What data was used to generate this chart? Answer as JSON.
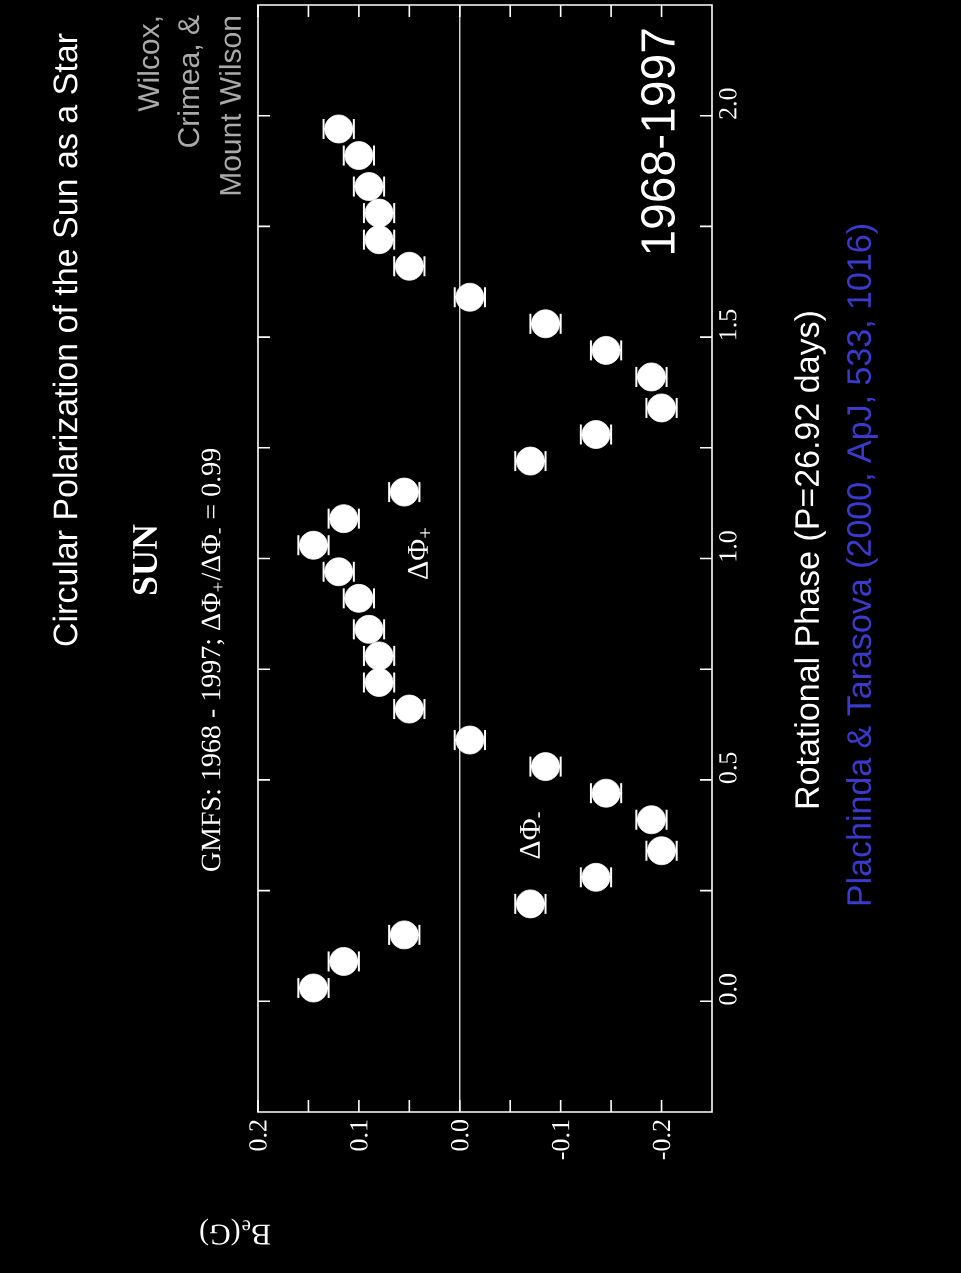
{
  "chart_data": {
    "type": "scatter",
    "title": "Circular Polarization of the Sun as a Star",
    "xlabel": "B$_{e}$(G)",
    "ylabel": "Rotational Phase (P=26.92 days)",
    "x": [
      0.145,
      0.115,
      0.055,
      -0.07,
      -0.135,
      -0.2,
      -0.19,
      -0.145,
      -0.085,
      -0.01,
      0.05,
      0.08,
      0.08,
      0.09,
      0.1,
      0.12,
      0.145,
      0.115,
      0.055,
      -0.07,
      -0.135,
      -0.2,
      -0.19,
      -0.145,
      -0.085,
      -0.01,
      0.05,
      0.08,
      0.08,
      0.09,
      0.1,
      0.12
    ],
    "values": [
      0.03,
      0.09,
      0.15,
      0.22,
      0.28,
      0.34,
      0.41,
      0.47,
      0.53,
      0.59,
      0.66,
      0.72,
      0.78,
      0.84,
      0.91,
      0.97,
      1.03,
      1.09,
      1.15,
      1.22,
      1.28,
      1.34,
      1.41,
      1.47,
      1.53,
      1.59,
      1.66,
      1.72,
      1.78,
      1.84,
      1.91,
      1.97
    ],
    "xerrors": [
      0.015,
      0.015,
      0.015,
      0.015,
      0.015,
      0.015,
      0.015,
      0.015,
      0.015,
      0.015,
      0.015,
      0.015,
      0.015,
      0.015,
      0.015,
      0.015,
      0.015,
      0.015,
      0.015,
      0.015,
      0.015,
      0.015,
      0.015,
      0.015,
      0.015,
      0.015,
      0.015,
      0.015,
      0.015,
      0.015,
      0.015,
      0.015
    ],
    "color": "#ffffff",
    "marker": "circle",
    "xlim": [
      0.2,
      -0.25
    ],
    "xticks": [
      {
        "value": 0.2,
        "label": "0.2"
      },
      {
        "value": 0.15,
        "label": null
      },
      {
        "value": 0.1,
        "label": "0.1"
      },
      {
        "value": 0.05,
        "label": null
      },
      {
        "value": 0,
        "label": "0.0"
      },
      {
        "value": -0.05,
        "label": null
      },
      {
        "value": -0.1,
        "label": "-0.1"
      },
      {
        "value": -0.15,
        "label": null
      },
      {
        "value": -0.2,
        "label": "-0.2"
      }
    ],
    "ylim": [
      -0.25,
      2.25
    ],
    "yticks": [
      {
        "value": 0,
        "label": "0.0"
      },
      {
        "value": 0.25,
        "label": null
      },
      {
        "value": 0.5,
        "label": "0.5"
      },
      {
        "value": 0.75,
        "label": null
      },
      {
        "value": 1,
        "label": "1.0"
      },
      {
        "value": 1.25,
        "label": null
      },
      {
        "value": 1.5,
        "label": "1.5"
      },
      {
        "value": 1.75,
        "label": null
      },
      {
        "value": 2,
        "label": "2.0"
      }
    ],
    "ref_lines": [
      {
        "axis": "x",
        "value": 0,
        "color": "#ffffff"
      }
    ],
    "annotations": [
      "SUN",
      "GMFS: 1968 - 1997; ΔΦ$_{+}$/ΔΦ$_{-}$ = 0.99",
      "ΔΦ$_{+}$",
      "ΔΦ$_{-}$",
      "Wilcox,",
      "Crimea, &",
      "Mount Wilson",
      "1968-1997",
      "Plachinda & Tarasova (2000, ApJ, 533, 1016)"
    ]
  }
}
